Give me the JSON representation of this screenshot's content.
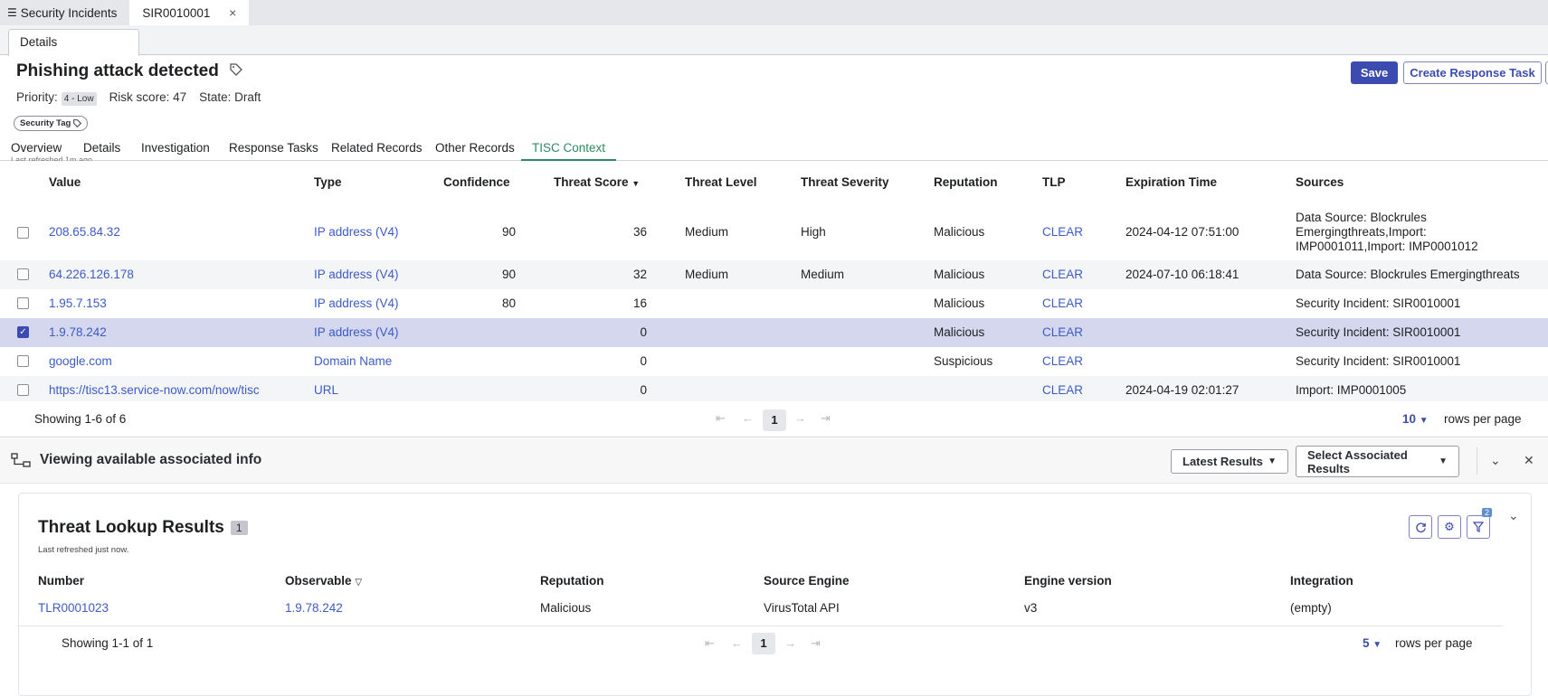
{
  "window_tabs": [
    {
      "label": "Security Incidents"
    },
    {
      "label": "SIR0010001"
    }
  ],
  "sub_tab": "Details",
  "record": {
    "title": "Phishing attack detected",
    "priority_label": "Priority:",
    "priority_value": "4 - Low",
    "risk_label": "Risk score:",
    "risk_value": "47",
    "state_label": "State:",
    "state_value": "Draft",
    "security_tag": "Security Tag"
  },
  "actions": {
    "save": "Save",
    "create_response_task": "Create Response Task"
  },
  "form_tabs": [
    "Overview",
    "Details",
    "Investigation",
    "Response Tasks",
    "Related Records",
    "Other Records",
    "TISC Context"
  ],
  "active_form_tab": "TISC Context",
  "last_refreshed_top": "Last refreshed 1m ago.",
  "observables": {
    "columns": [
      "Value",
      "Type",
      "Confidence",
      "Threat Score",
      "Threat Level",
      "Threat Severity",
      "Reputation",
      "TLP",
      "Expiration Time",
      "Sources"
    ],
    "sort_column": "Threat Score",
    "rows": [
      {
        "value": "208.65.84.32",
        "type": "IP address (V4)",
        "confidence": "90",
        "threat_score": "36",
        "threat_level": "Medium",
        "threat_severity": "High",
        "reputation": "Malicious",
        "tlp": "CLEAR",
        "expiration": "2024-04-12 07:51:00",
        "sources_1": "Data Source: Blockrules",
        "sources_2": "Emergingthreats,Import:",
        "sources_3": "IMP0001011,Import: IMP0001012",
        "checked": false
      },
      {
        "value": "64.226.126.178",
        "type": "IP address (V4)",
        "confidence": "90",
        "threat_score": "32",
        "threat_level": "Medium",
        "threat_severity": "Medium",
        "reputation": "Malicious",
        "tlp": "CLEAR",
        "expiration": "2024-07-10 06:18:41",
        "sources_1": "Data Source: Blockrules Emergingthreats",
        "checked": false
      },
      {
        "value": "1.95.7.153",
        "type": "IP address (V4)",
        "confidence": "80",
        "threat_score": "16",
        "threat_level": "",
        "threat_severity": "",
        "reputation": "Malicious",
        "tlp": "CLEAR",
        "expiration": "",
        "sources_1": "Security Incident: SIR0010001",
        "checked": false
      },
      {
        "value": "1.9.78.242",
        "type": "IP address (V4)",
        "confidence": "",
        "threat_score": "0",
        "threat_level": "",
        "threat_severity": "",
        "reputation": "Malicious",
        "tlp": "CLEAR",
        "expiration": "",
        "sources_1": "Security Incident: SIR0010001",
        "checked": true
      },
      {
        "value": "google.com",
        "type": "Domain Name",
        "confidence": "",
        "threat_score": "0",
        "threat_level": "",
        "threat_severity": "",
        "reputation": "Suspicious",
        "tlp": "CLEAR",
        "expiration": "",
        "sources_1": "Security Incident: SIR0010001",
        "checked": false
      },
      {
        "value": "https://tisc13.service-now.com/now/tisc",
        "type": "URL",
        "confidence": "",
        "threat_score": "0",
        "threat_level": "",
        "threat_severity": "",
        "reputation": "",
        "tlp": "CLEAR",
        "expiration": "2024-04-19 02:01:27",
        "sources_1": "Import: IMP0001005",
        "checked": false
      }
    ],
    "showing": "Showing 1-6 of 6",
    "current_page": "1",
    "rows_per_page": "10",
    "rows_per_page_label": "rows per page"
  },
  "associated": {
    "title": "Viewing available associated info",
    "latest_results": "Latest Results",
    "select_associated": "Select Associated Results"
  },
  "threat_lookup": {
    "title": "Threat Lookup Results",
    "count": "1",
    "last_refreshed": "Last refreshed just now.",
    "filter_count": "2",
    "columns": [
      "Number",
      "Observable",
      "Reputation",
      "Source Engine",
      "Engine version",
      "Integration"
    ],
    "rows": [
      {
        "number": "TLR0001023",
        "observable": "1.9.78.242",
        "reputation": "Malicious",
        "source_engine": "VirusTotal API",
        "engine_version": "v3",
        "integration": "(empty)"
      }
    ],
    "showing": "Showing 1-1 of 1",
    "current_page": "1",
    "rows_per_page": "5",
    "rows_per_page_label": "rows per page"
  },
  "colors": {
    "accent": "#3c4bb0",
    "link": "#3c5bc7",
    "active_tab": "#2d8a64",
    "selected_row": "#d4d7ee"
  }
}
